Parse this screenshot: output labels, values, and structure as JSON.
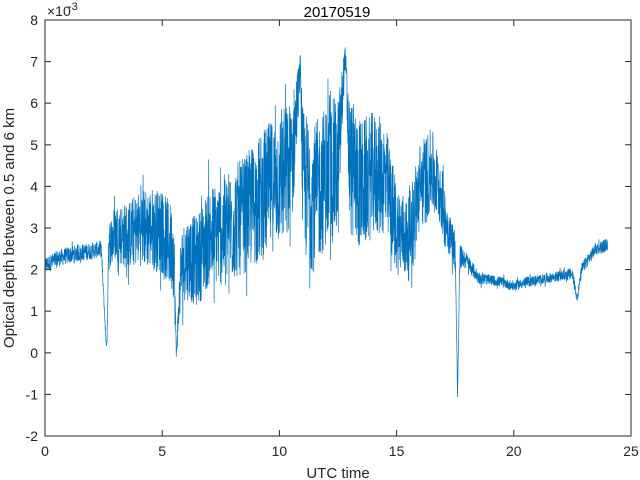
{
  "chart_data": {
    "type": "line",
    "title": "20170519",
    "xlabel": "UTC time",
    "ylabel": "Optical depth between 0.5 and 6 km",
    "y_exponent_base": "×10",
    "y_exponent_power": "-3",
    "xlim": [
      0,
      25
    ],
    "ylim": [
      -2,
      8
    ],
    "y_scale_multiplier": 0.001,
    "x_ticks": [
      0,
      5,
      10,
      15,
      20,
      25
    ],
    "y_ticks": [
      -2,
      -1,
      0,
      1,
      2,
      3,
      4,
      5,
      6,
      7,
      8
    ],
    "line_color": "#0072BD",
    "grid": false,
    "box": true,
    "series": [
      {
        "x": [
          0.0,
          0.5,
          1.0,
          1.5,
          2.0,
          2.4,
          2.6,
          2.65,
          2.7,
          2.8,
          3.0,
          3.5,
          4.0,
          4.5,
          5.0,
          5.5,
          5.6,
          5.8,
          6.0,
          6.5,
          7.0,
          7.5,
          8.0,
          8.5,
          9.0,
          9.5,
          10.0,
          10.5,
          10.9,
          11.0,
          11.5,
          12.0,
          12.5,
          12.8,
          13.0,
          13.5,
          14.0,
          14.5,
          15.0,
          15.5,
          16.0,
          16.5,
          16.9,
          17.0,
          17.3,
          17.5,
          17.6,
          17.7,
          17.8,
          18.0,
          18.5,
          19.0,
          19.5,
          20.0,
          20.5,
          21.0,
          21.5,
          22.0,
          22.5,
          22.7,
          22.9,
          23.0,
          23.3,
          23.5,
          24.0
        ],
        "y": [
          2.1,
          2.25,
          2.35,
          2.4,
          2.45,
          2.5,
          0.3,
          0.2,
          2.5,
          2.7,
          2.9,
          2.8,
          3.0,
          3.0,
          2.9,
          2.4,
          -0.05,
          2.0,
          2.3,
          2.2,
          2.8,
          2.9,
          3.1,
          3.3,
          3.6,
          3.9,
          4.2,
          4.3,
          6.9,
          4.1,
          3.7,
          4.3,
          4.4,
          7.2,
          4.5,
          4.0,
          4.3,
          4.2,
          3.0,
          2.7,
          4.0,
          4.4,
          3.8,
          3.4,
          2.8,
          2.5,
          -1.05,
          2.3,
          2.3,
          2.2,
          1.8,
          1.75,
          1.7,
          1.6,
          1.7,
          1.75,
          1.8,
          1.85,
          1.9,
          1.3,
          2.0,
          2.1,
          2.35,
          2.5,
          2.6
        ],
        "noise_amplitude": [
          0.2,
          0.2,
          0.2,
          0.2,
          0.2,
          0.2,
          0.1,
          0.1,
          0.6,
          0.6,
          0.7,
          0.8,
          0.9,
          1.0,
          1.0,
          1.1,
          0.1,
          0.9,
          1.0,
          1.1,
          1.2,
          1.3,
          1.4,
          1.4,
          1.5,
          1.6,
          1.6,
          1.8,
          0.3,
          1.8,
          1.8,
          1.7,
          1.8,
          0.2,
          1.7,
          1.6,
          1.5,
          1.4,
          1.1,
          1.0,
          1.1,
          1.0,
          0.8,
          0.8,
          0.5,
          0.5,
          0.1,
          0.3,
          0.25,
          0.2,
          0.15,
          0.12,
          0.12,
          0.12,
          0.12,
          0.12,
          0.12,
          0.12,
          0.15,
          0.1,
          0.15,
          0.15,
          0.15,
          0.15,
          0.15
        ]
      }
    ]
  }
}
